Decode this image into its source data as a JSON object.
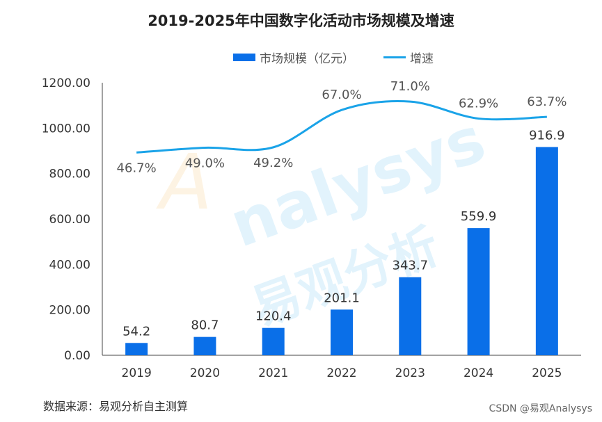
{
  "chart_data": {
    "type": "bar+line",
    "title": "2019-2025年中国数字化活动市场规模及增速",
    "categories": [
      "2019",
      "2020",
      "2021",
      "2022",
      "2023",
      "2024",
      "2025"
    ],
    "series": [
      {
        "name": "市场规模（亿元）",
        "type": "bar",
        "axis": "left",
        "values": [
          54.2,
          80.7,
          120.4,
          201.1,
          343.7,
          559.9,
          916.9
        ],
        "labels": [
          "54.2",
          "80.7",
          "120.4",
          "201.1",
          "343.7",
          "559.9",
          "916.9"
        ],
        "color": "#0a6fe8"
      },
      {
        "name": "增速",
        "type": "line",
        "axis": "right-hidden",
        "values": [
          46.7,
          49.0,
          49.2,
          67.0,
          71.0,
          62.9,
          63.7
        ],
        "labels": [
          "46.7%",
          "49.0%",
          "49.2%",
          "67.0%",
          "71.0%",
          "62.9%",
          "63.7%"
        ],
        "color": "#1aa3e8",
        "smooth": true
      }
    ],
    "ylim": [
      0,
      1200
    ],
    "yticks": [
      "0.00",
      "200.00",
      "400.00",
      "600.00",
      "800.00",
      "1000.00",
      "1200.00"
    ],
    "y2lim": [
      -50,
      80
    ],
    "grid": false,
    "legend": "top-center"
  },
  "source": "数据来源：易观分析自主测算",
  "credit": "CSDN @易观Analysys",
  "watermark": "Analysys 易观分析"
}
